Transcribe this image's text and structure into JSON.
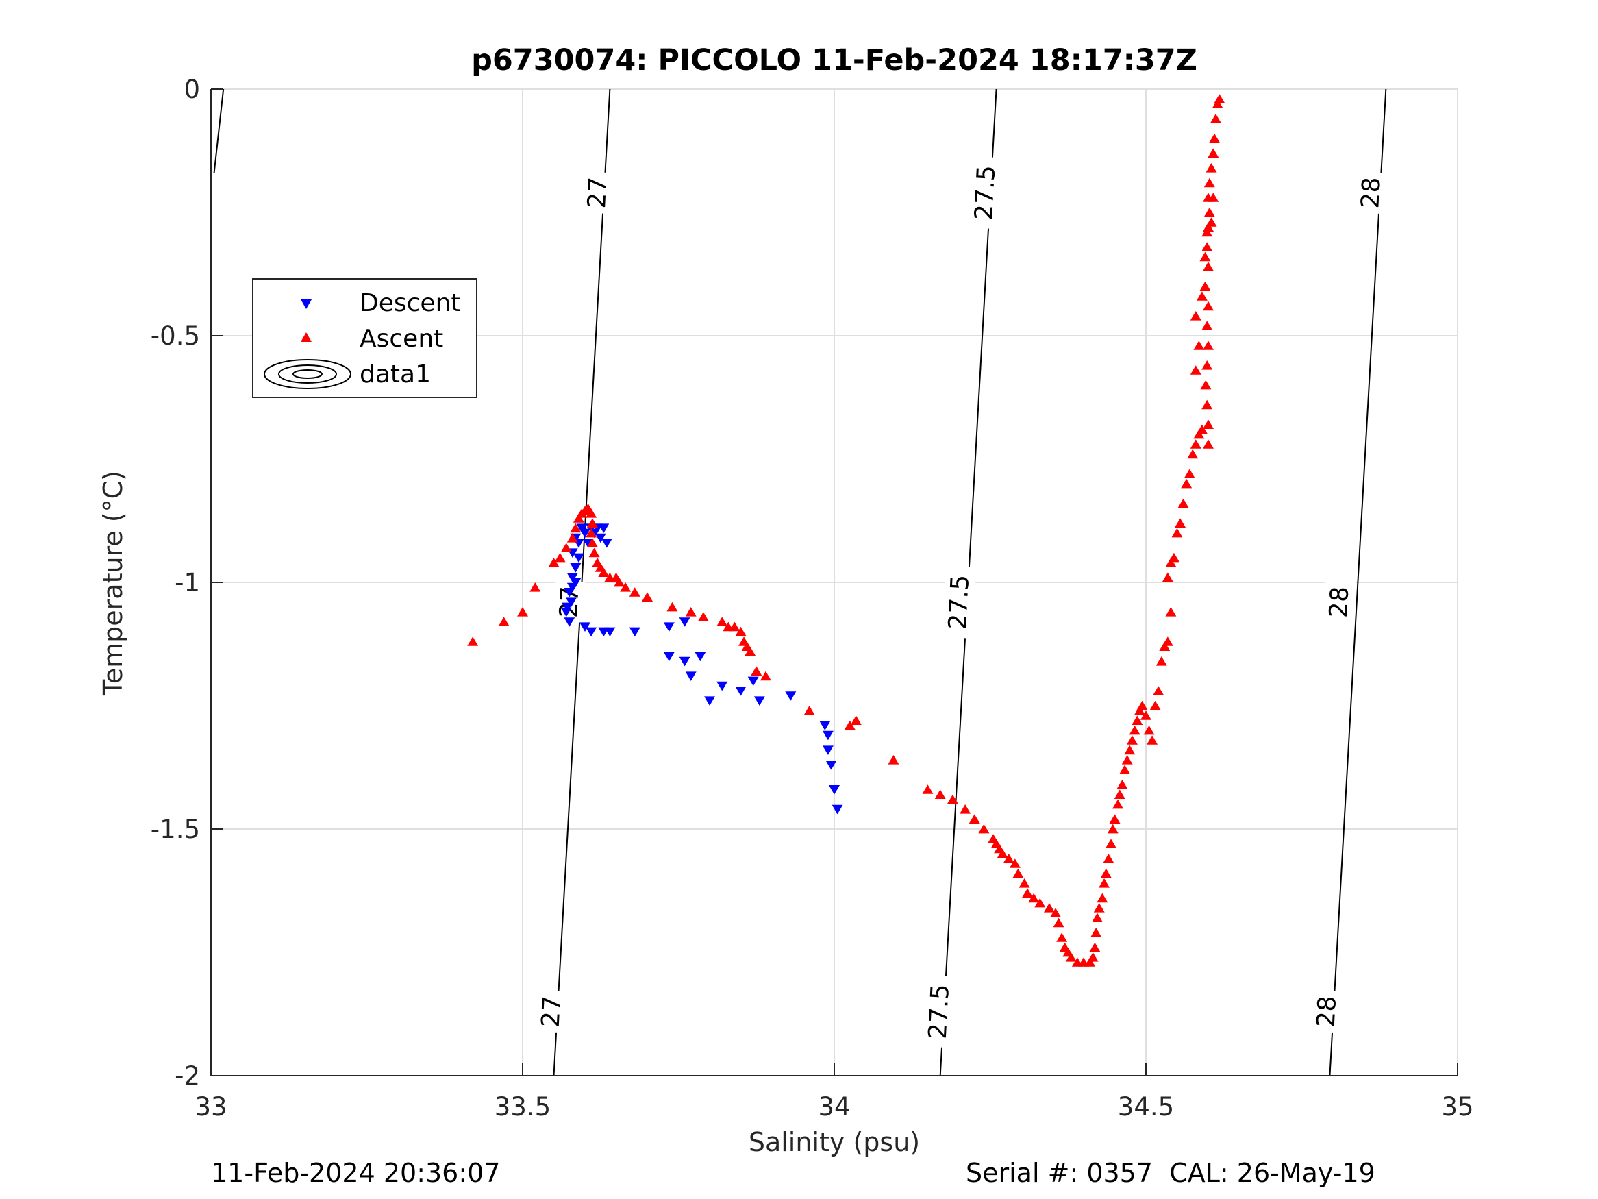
{
  "chart_data": {
    "type": "scatter",
    "title": "p6730074: PICCOLO 11-Feb-2024 18:17:37Z",
    "xlabel": "Salinity (psu)",
    "ylabel": "Temperature (°C)",
    "xlim": [
      33,
      35
    ],
    "ylim": [
      -2,
      0
    ],
    "x_ticks": [
      "33",
      "33.5",
      "34",
      "34.5",
      "35"
    ],
    "y_ticks": [
      "0",
      "-0.5",
      "-1",
      "-1.5",
      "-2"
    ],
    "grid": true,
    "legend_position": "upper-left",
    "legend": [
      "Descent",
      "Ascent",
      "data1"
    ],
    "series": [
      {
        "name": "Descent",
        "marker": "triangle-down",
        "color": "#0000ff",
        "points": [
          [
            33.585,
            -0.91
          ],
          [
            33.59,
            -0.92
          ],
          [
            33.595,
            -0.89
          ],
          [
            33.6,
            -0.9
          ],
          [
            33.605,
            -0.92
          ],
          [
            33.61,
            -0.89
          ],
          [
            33.615,
            -0.9
          ],
          [
            33.62,
            -0.89
          ],
          [
            33.625,
            -0.91
          ],
          [
            33.63,
            -0.89
          ],
          [
            33.635,
            -0.92
          ],
          [
            33.58,
            -0.94
          ],
          [
            33.59,
            -0.95
          ],
          [
            33.585,
            -0.97
          ],
          [
            33.58,
            -0.99
          ],
          [
            33.585,
            -1.0
          ],
          [
            33.58,
            -1.01
          ],
          [
            33.575,
            -1.02
          ],
          [
            33.578,
            -1.04
          ],
          [
            33.572,
            -1.05
          ],
          [
            33.57,
            -1.06
          ],
          [
            33.575,
            -1.08
          ],
          [
            33.6,
            -1.09
          ],
          [
            33.61,
            -1.1
          ],
          [
            33.63,
            -1.1
          ],
          [
            33.64,
            -1.1
          ],
          [
            33.68,
            -1.1
          ],
          [
            33.735,
            -1.09
          ],
          [
            33.76,
            -1.08
          ],
          [
            33.735,
            -1.15
          ],
          [
            33.76,
            -1.16
          ],
          [
            33.785,
            -1.15
          ],
          [
            33.77,
            -1.19
          ],
          [
            33.8,
            -1.24
          ],
          [
            33.82,
            -1.21
          ],
          [
            33.85,
            -1.22
          ],
          [
            33.87,
            -1.2
          ],
          [
            33.88,
            -1.24
          ],
          [
            33.93,
            -1.23
          ],
          [
            33.985,
            -1.29
          ],
          [
            33.99,
            -1.31
          ],
          [
            33.99,
            -1.34
          ],
          [
            33.995,
            -1.37
          ],
          [
            34.0,
            -1.42
          ],
          [
            34.005,
            -1.46
          ]
        ]
      },
      {
        "name": "Ascent",
        "marker": "triangle-up",
        "color": "#ff0000",
        "points": [
          [
            33.42,
            -1.12
          ],
          [
            33.47,
            -1.08
          ],
          [
            33.5,
            -1.06
          ],
          [
            33.52,
            -1.01
          ],
          [
            33.55,
            -0.96
          ],
          [
            33.56,
            -0.95
          ],
          [
            33.57,
            -0.93
          ],
          [
            33.58,
            -0.91
          ],
          [
            33.585,
            -0.89
          ],
          [
            33.59,
            -0.87
          ],
          [
            33.595,
            -0.86
          ],
          [
            33.6,
            -0.855
          ],
          [
            33.605,
            -0.85
          ],
          [
            33.61,
            -0.86
          ],
          [
            33.612,
            -0.88
          ],
          [
            33.61,
            -0.9
          ],
          [
            33.612,
            -0.92
          ],
          [
            33.615,
            -0.94
          ],
          [
            33.62,
            -0.96
          ],
          [
            33.625,
            -0.97
          ],
          [
            33.63,
            -0.98
          ],
          [
            33.64,
            -0.99
          ],
          [
            33.65,
            -0.99
          ],
          [
            33.655,
            -1.0
          ],
          [
            33.665,
            -1.01
          ],
          [
            33.68,
            -1.02
          ],
          [
            33.7,
            -1.03
          ],
          [
            33.74,
            -1.05
          ],
          [
            33.77,
            -1.06
          ],
          [
            33.79,
            -1.07
          ],
          [
            33.82,
            -1.08
          ],
          [
            33.83,
            -1.09
          ],
          [
            33.84,
            -1.09
          ],
          [
            33.85,
            -1.1
          ],
          [
            33.855,
            -1.12
          ],
          [
            33.86,
            -1.13
          ],
          [
            33.865,
            -1.14
          ],
          [
            33.875,
            -1.18
          ],
          [
            33.89,
            -1.19
          ],
          [
            33.96,
            -1.26
          ],
          [
            34.025,
            -1.29
          ],
          [
            34.035,
            -1.28
          ],
          [
            34.095,
            -1.36
          ],
          [
            34.15,
            -1.42
          ],
          [
            34.17,
            -1.43
          ],
          [
            34.19,
            -1.44
          ],
          [
            34.21,
            -1.46
          ],
          [
            34.225,
            -1.48
          ],
          [
            34.24,
            -1.5
          ],
          [
            34.255,
            -1.52
          ],
          [
            34.26,
            -1.53
          ],
          [
            34.265,
            -1.54
          ],
          [
            34.27,
            -1.55
          ],
          [
            34.28,
            -1.56
          ],
          [
            34.29,
            -1.57
          ],
          [
            34.295,
            -1.59
          ],
          [
            34.305,
            -1.61
          ],
          [
            34.31,
            -1.63
          ],
          [
            34.32,
            -1.64
          ],
          [
            34.33,
            -1.65
          ],
          [
            34.345,
            -1.66
          ],
          [
            34.355,
            -1.67
          ],
          [
            34.36,
            -1.69
          ],
          [
            34.365,
            -1.72
          ],
          [
            34.37,
            -1.74
          ],
          [
            34.375,
            -1.75
          ],
          [
            34.38,
            -1.76
          ],
          [
            34.39,
            -1.77
          ],
          [
            34.4,
            -1.77
          ],
          [
            34.41,
            -1.77
          ],
          [
            34.415,
            -1.76
          ],
          [
            34.418,
            -1.74
          ],
          [
            34.42,
            -1.71
          ],
          [
            34.422,
            -1.68
          ],
          [
            34.425,
            -1.66
          ],
          [
            34.43,
            -1.64
          ],
          [
            34.433,
            -1.61
          ],
          [
            34.436,
            -1.59
          ],
          [
            34.44,
            -1.56
          ],
          [
            34.444,
            -1.53
          ],
          [
            34.447,
            -1.5
          ],
          [
            34.45,
            -1.48
          ],
          [
            34.455,
            -1.45
          ],
          [
            34.458,
            -1.43
          ],
          [
            34.462,
            -1.41
          ],
          [
            34.466,
            -1.38
          ],
          [
            34.47,
            -1.36
          ],
          [
            34.474,
            -1.34
          ],
          [
            34.478,
            -1.32
          ],
          [
            34.482,
            -1.3
          ],
          [
            34.486,
            -1.28
          ],
          [
            34.49,
            -1.26
          ],
          [
            34.494,
            -1.25
          ],
          [
            34.5,
            -1.27
          ],
          [
            34.505,
            -1.3
          ],
          [
            34.51,
            -1.32
          ],
          [
            34.515,
            -1.25
          ],
          [
            34.52,
            -1.22
          ],
          [
            34.525,
            -1.16
          ],
          [
            34.53,
            -1.13
          ],
          [
            34.535,
            -1.12
          ],
          [
            34.54,
            -1.06
          ],
          [
            34.535,
            -0.99
          ],
          [
            34.54,
            -0.96
          ],
          [
            34.545,
            -0.95
          ],
          [
            34.55,
            -0.9
          ],
          [
            34.555,
            -0.88
          ],
          [
            34.56,
            -0.84
          ],
          [
            34.565,
            -0.8
          ],
          [
            34.57,
            -0.78
          ],
          [
            34.575,
            -0.74
          ],
          [
            34.58,
            -0.72
          ],
          [
            34.585,
            -0.7
          ],
          [
            34.59,
            -0.69
          ],
          [
            34.6,
            -0.72
          ],
          [
            34.6,
            -0.68
          ],
          [
            34.598,
            -0.64
          ],
          [
            34.596,
            -0.6
          ],
          [
            34.598,
            -0.56
          ],
          [
            34.6,
            -0.52
          ],
          [
            34.598,
            -0.48
          ],
          [
            34.6,
            -0.44
          ],
          [
            34.595,
            -0.4
          ],
          [
            34.6,
            -0.36
          ],
          [
            34.598,
            -0.32
          ],
          [
            34.6,
            -0.28
          ],
          [
            34.602,
            -0.25
          ],
          [
            34.6,
            -0.22
          ],
          [
            34.602,
            -0.19
          ],
          [
            34.605,
            -0.16
          ],
          [
            34.608,
            -0.13
          ],
          [
            34.61,
            -0.1
          ],
          [
            34.612,
            -0.06
          ],
          [
            34.615,
            -0.03
          ],
          [
            34.618,
            -0.02
          ],
          [
            34.58,
            -0.57
          ],
          [
            34.585,
            -0.52
          ],
          [
            34.58,
            -0.46
          ],
          [
            34.59,
            -0.42
          ],
          [
            34.595,
            -0.34
          ],
          [
            34.598,
            -0.29
          ],
          [
            34.605,
            -0.27
          ],
          [
            34.608,
            -0.22
          ]
        ]
      }
    ],
    "contours": {
      "legend_name": "data1",
      "lines": [
        {
          "label": "27",
          "top": [
            33.64,
            0
          ],
          "bottom": [
            33.55,
            -2
          ]
        },
        {
          "label": "27.5",
          "top": [
            34.26,
            0
          ],
          "bottom": [
            34.17,
            -2
          ]
        },
        {
          "label": "28",
          "top": [
            34.885,
            0
          ],
          "bottom": [
            34.795,
            -2
          ]
        }
      ],
      "edge_line": {
        "top": [
          33.02,
          0
        ],
        "bottom": [
          33.005,
          -0.17
        ]
      },
      "labels": [
        {
          "text": "27",
          "x": 33.62,
          "y": -0.21
        },
        {
          "text": "27",
          "x": 33.575,
          "y": -1.04
        },
        {
          "text": "27",
          "x": 33.546,
          "y": -1.87
        },
        {
          "text": "27.5",
          "x": 34.242,
          "y": -0.21
        },
        {
          "text": "27.5",
          "x": 34.2,
          "y": -1.04
        },
        {
          "text": "27.5",
          "x": 34.168,
          "y": -1.87
        },
        {
          "text": "28",
          "x": 34.861,
          "y": -0.21
        },
        {
          "text": "28",
          "x": 34.81,
          "y": -1.04
        },
        {
          "text": "28",
          "x": 34.79,
          "y": -1.87
        }
      ]
    }
  },
  "footer": {
    "timestamp": "11-Feb-2024 20:36:07",
    "serial": "Serial #: 0357  CAL: 26-May-19"
  }
}
